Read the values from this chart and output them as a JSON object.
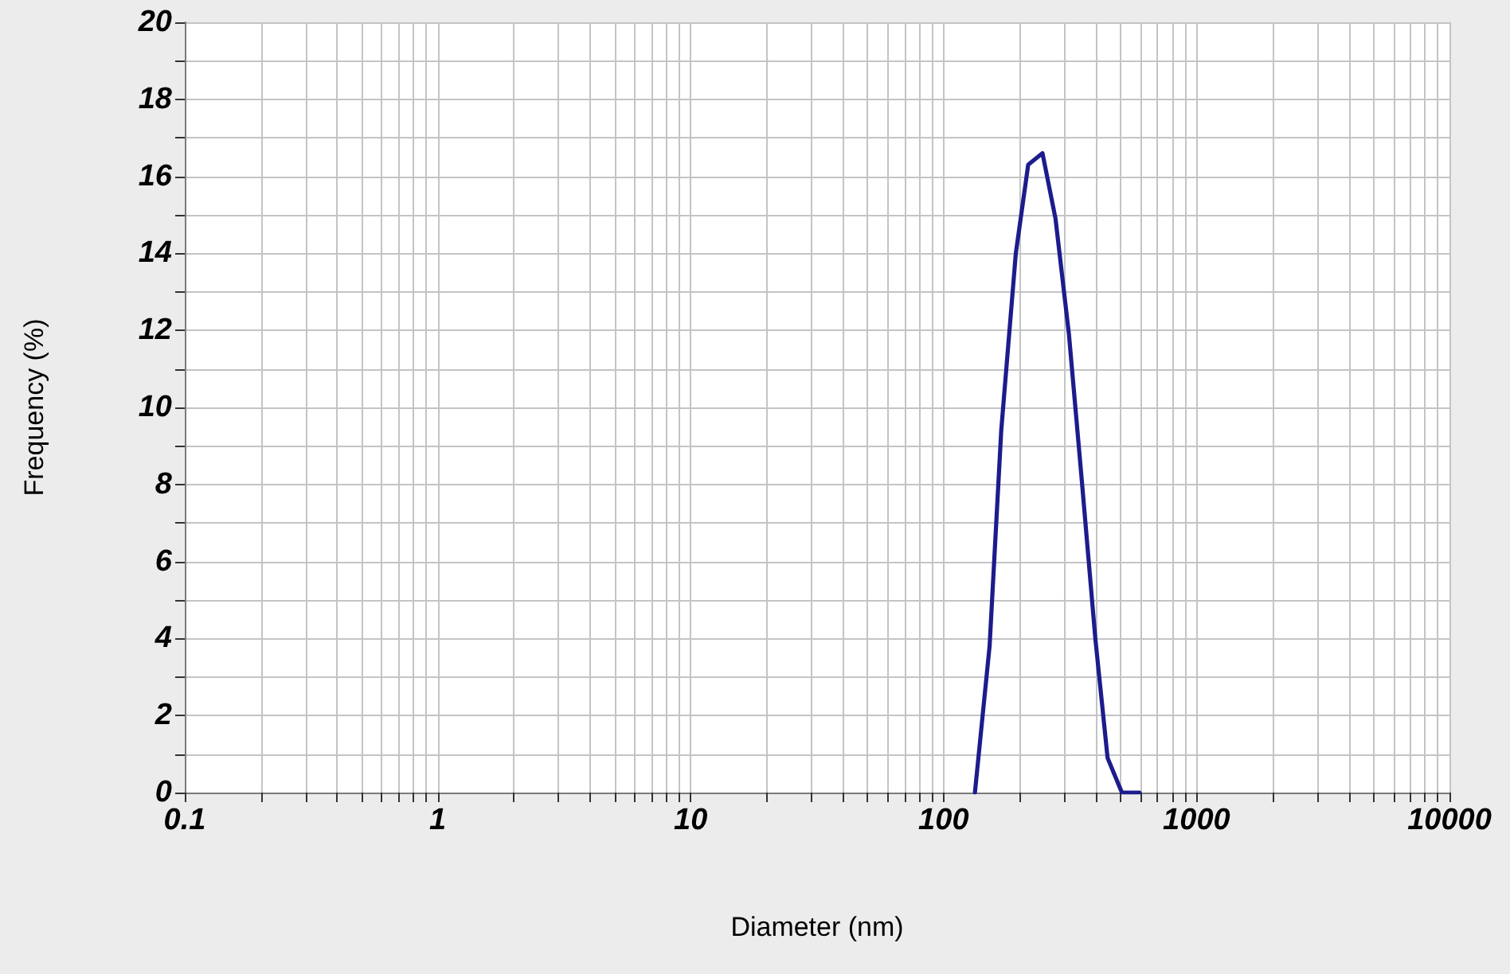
{
  "chart_data": {
    "type": "line",
    "xlabel": "Diameter (nm)",
    "ylabel": "Frequency (%)",
    "x": [
      133,
      152,
      169,
      193,
      216,
      246,
      277,
      313,
      353,
      398,
      445,
      507,
      595
    ],
    "values": [
      0,
      3.8,
      9.4,
      14.0,
      16.3,
      16.6,
      14.9,
      11.9,
      8.0,
      4.0,
      0.9,
      0,
      0
    ],
    "color": "#1c1c8c",
    "log": "x",
    "xlim": [
      0.1,
      10000
    ],
    "ylim": [
      0,
      20
    ],
    "xticks": [
      0.1,
      {
        "value": 0.2,
        "label": null
      },
      {
        "value": 0.3,
        "label": null
      },
      {
        "value": 0.4,
        "label": null
      },
      {
        "value": 0.5,
        "label": null
      },
      {
        "value": 0.6,
        "label": null
      },
      {
        "value": 0.7,
        "label": null
      },
      {
        "value": 0.8,
        "label": null
      },
      {
        "value": 0.9,
        "label": null
      },
      1,
      {
        "value": 2,
        "label": null
      },
      {
        "value": 3,
        "label": null
      },
      {
        "value": 4,
        "label": null
      },
      {
        "value": 5,
        "label": null
      },
      {
        "value": 6,
        "label": null
      },
      {
        "value": 7,
        "label": null
      },
      {
        "value": 8,
        "label": null
      },
      {
        "value": 9,
        "label": null
      },
      10,
      {
        "value": 20,
        "label": null
      },
      {
        "value": 30,
        "label": null
      },
      {
        "value": 40,
        "label": null
      },
      {
        "value": 50,
        "label": null
      },
      {
        "value": 60,
        "label": null
      },
      {
        "value": 70,
        "label": null
      },
      {
        "value": 80,
        "label": null
      },
      {
        "value": 90,
        "label": null
      },
      100,
      {
        "value": 200,
        "label": null
      },
      {
        "value": 300,
        "label": null
      },
      {
        "value": 400,
        "label": null
      },
      {
        "value": 500,
        "label": null
      },
      {
        "value": 600,
        "label": null
      },
      {
        "value": 700,
        "label": null
      },
      {
        "value": 800,
        "label": null
      },
      {
        "value": 900,
        "label": null
      },
      1000,
      {
        "value": 2000,
        "label": null
      },
      {
        "value": 3000,
        "label": null
      },
      {
        "value": 4000,
        "label": null
      },
      {
        "value": 5000,
        "label": null
      },
      {
        "value": 6000,
        "label": null
      },
      {
        "value": 7000,
        "label": null
      },
      {
        "value": 8000,
        "label": null
      },
      {
        "value": 9000,
        "label": null
      },
      10000
    ],
    "yticks": [
      0,
      {
        "value": 1,
        "label": null
      },
      2,
      {
        "value": 3,
        "label": null
      },
      4,
      {
        "value": 5,
        "label": null
      },
      6,
      {
        "value": 7,
        "label": null
      },
      8,
      {
        "value": 9,
        "label": null
      },
      10,
      {
        "value": 11,
        "label": null
      },
      12,
      {
        "value": 13,
        "label": null
      },
      14,
      {
        "value": 15,
        "label": null
      },
      16,
      {
        "value": 17,
        "label": null
      },
      18,
      {
        "value": 19,
        "label": null
      },
      20
    ],
    "grid": true,
    "marker": "none",
    "line_style": "solid"
  }
}
